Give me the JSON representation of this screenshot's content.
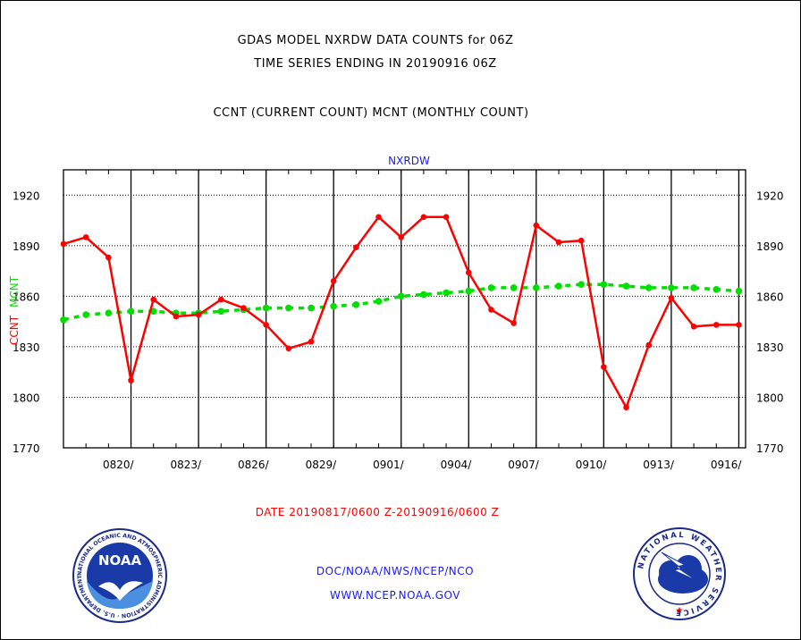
{
  "titles": {
    "line1": "GDAS MODEL NXRDW DATA COUNTS for 06Z",
    "line2": "TIME SERIES ENDING IN 20190916 06Z",
    "line3": "CCNT (CURRENT COUNT) MCNT (MONTHLY COUNT)"
  },
  "footer": {
    "date_range": "DATE 20190817/0600 Z-20190916/0600 Z",
    "org": "DOC/NOAA/NWS/NCEP/NCO",
    "url": "WWW.NCEP.NOAA.GOV"
  },
  "logos": {
    "left_text": "NOAA",
    "left_ring": "NATIONAL OCEANIC AND ATMOSPHERIC ADMINISTRATION · U.S. DEPARTMENT OF COMMERCE ·",
    "right_ring": "NATIONAL WEATHER SERVICE"
  },
  "colors": {
    "ccnt": "#ff0000",
    "mcnt": "#00e000",
    "axis_label": "#1a1aff",
    "date_label": "#ff0000"
  },
  "chart_data": {
    "type": "line",
    "title": "NXRDW",
    "ylabel_ccnt": "CCNT",
    "ylabel_mcnt": "MCNT",
    "ylim": [
      1770,
      1935
    ],
    "yticks": [
      1770,
      1800,
      1830,
      1860,
      1890,
      1920
    ],
    "xlim": [
      0,
      30.3
    ],
    "xtick_labels": [
      "0820/",
      "0823/",
      "0826/",
      "0829/",
      "0901/",
      "0904/",
      "0907/",
      "0910/",
      "0913/",
      "0916/"
    ],
    "xtick_days": [
      3,
      6,
      9,
      12,
      15,
      18,
      21,
      24,
      27,
      30
    ],
    "grid": true,
    "series": [
      {
        "name": "CCNT",
        "x": [
          0,
          1,
          2,
          3,
          4,
          5,
          6,
          7,
          8,
          9,
          10,
          11,
          12,
          13,
          14,
          15,
          16,
          17,
          18,
          19,
          20,
          21,
          22,
          23,
          24,
          25,
          26,
          27,
          28,
          29,
          30
        ],
        "values": [
          1891,
          1895,
          1883,
          1810,
          1858,
          1848,
          1849,
          1858,
          1853,
          1843,
          1829,
          1833,
          1869,
          1889,
          1907,
          1895,
          1907,
          1907,
          1874,
          1852,
          1844,
          1902,
          1892,
          1893,
          1818,
          1794,
          1831,
          1859,
          1842,
          1843,
          1843
        ]
      },
      {
        "name": "MCNT",
        "x": [
          0,
          1,
          2,
          3,
          4,
          5,
          6,
          7,
          8,
          9,
          10,
          11,
          12,
          13,
          14,
          15,
          16,
          17,
          18,
          19,
          20,
          21,
          22,
          23,
          24,
          25,
          26,
          27,
          28,
          29,
          30
        ],
        "values": [
          1846,
          1849,
          1850,
          1851,
          1851,
          1850,
          1850,
          1851,
          1852,
          1853,
          1853,
          1853,
          1854,
          1855,
          1857,
          1860,
          1861,
          1862,
          1863,
          1865,
          1865,
          1865,
          1866,
          1867,
          1867,
          1866,
          1865,
          1865,
          1865,
          1864,
          1863
        ]
      }
    ]
  }
}
